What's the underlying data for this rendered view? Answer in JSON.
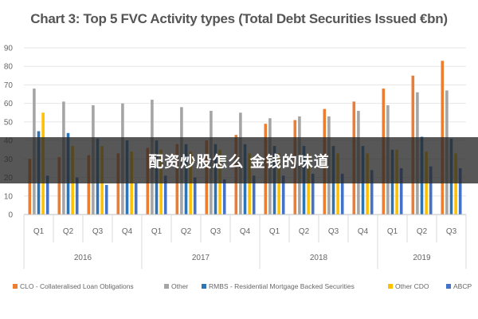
{
  "overlay_text": "配资炒股怎么 金钱的味道",
  "colors": {
    "background": "#ffffff",
    "gridline": "#e6e6e6",
    "axis_text": "#666666"
  },
  "chart_data": {
    "type": "bar",
    "title": "Chart 3: Top 5 FVC Activity types (Total Debt Securities Issued €bn)",
    "xlabel": "",
    "ylabel": "",
    "ylim": [
      0,
      90
    ],
    "yticks": [
      0,
      10,
      20,
      30,
      40,
      50,
      60,
      70,
      80,
      90
    ],
    "grid": true,
    "legend_position": "bottom",
    "categories": [
      "Q1",
      "Q2",
      "Q3",
      "Q4",
      "Q1",
      "Q2",
      "Q3",
      "Q4",
      "Q1",
      "Q2",
      "Q3",
      "Q4",
      "Q1",
      "Q2",
      "Q3"
    ],
    "year_groups": [
      {
        "label": "2016",
        "count": 4
      },
      {
        "label": "2017",
        "count": 4
      },
      {
        "label": "2018",
        "count": 4
      },
      {
        "label": "2019",
        "count": 3
      }
    ],
    "series": [
      {
        "name": "CLO - Collateralised Loan Obligations",
        "color": "#ED7D31",
        "values": [
          30,
          31,
          32,
          33,
          36,
          38,
          40,
          43,
          49,
          51,
          57,
          61,
          68,
          75,
          83
        ]
      },
      {
        "name": "Other",
        "color": "#A5A5A5",
        "values": [
          68,
          61,
          59,
          60,
          62,
          58,
          56,
          55,
          52,
          53,
          53,
          56,
          59,
          66,
          67
        ]
      },
      {
        "name": "RMBS - Residential Mortgage Backed Securities",
        "color": "#2E75B6",
        "values": [
          45,
          44,
          41,
          40,
          40,
          38,
          38,
          38,
          37,
          37,
          37,
          37,
          35,
          42,
          41
        ]
      },
      {
        "name": "Other CDO",
        "color": "#FFC000",
        "values": [
          55,
          37,
          37,
          34,
          35,
          34,
          35,
          33,
          33,
          33,
          33,
          33,
          35,
          34,
          33
        ]
      },
      {
        "name": "ABCP",
        "color": "#4472C4",
        "values": [
          21,
          20,
          16,
          17,
          21,
          20,
          19,
          21,
          21,
          22,
          22,
          24,
          25,
          26,
          25
        ]
      }
    ]
  }
}
